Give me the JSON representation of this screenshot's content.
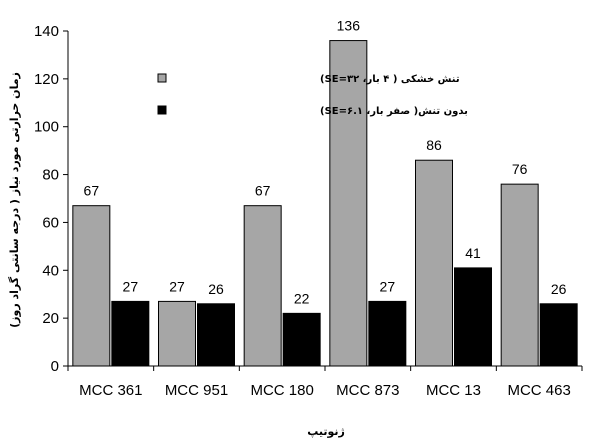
{
  "chart_data": {
    "type": "bar",
    "categories": [
      "MCC 361",
      "MCC 951",
      "MCC 180",
      "MCC 873",
      "MCC 13",
      "MCC 463"
    ],
    "series": [
      {
        "name": "تنش خشکی ( ۴ بار، SE=۳۲)",
        "color": "#a6a6a6",
        "values": [
          67,
          27,
          67,
          136,
          86,
          76
        ]
      },
      {
        "name": "بدون تنش( صفر بار، SE=۶.۱)",
        "color": "#000000",
        "values": [
          27,
          26,
          22,
          27,
          41,
          26
        ]
      }
    ],
    "xlabel": "ژنوتیپ",
    "ylabel": "زمان حرارتی مورد نیاز ( درجه سانتی گراد روز)",
    "ylim": [
      0,
      140
    ],
    "yticks": [
      0,
      20,
      40,
      60,
      80,
      100,
      120,
      140
    ],
    "grid": false,
    "legend_position": "top-left-inside"
  }
}
